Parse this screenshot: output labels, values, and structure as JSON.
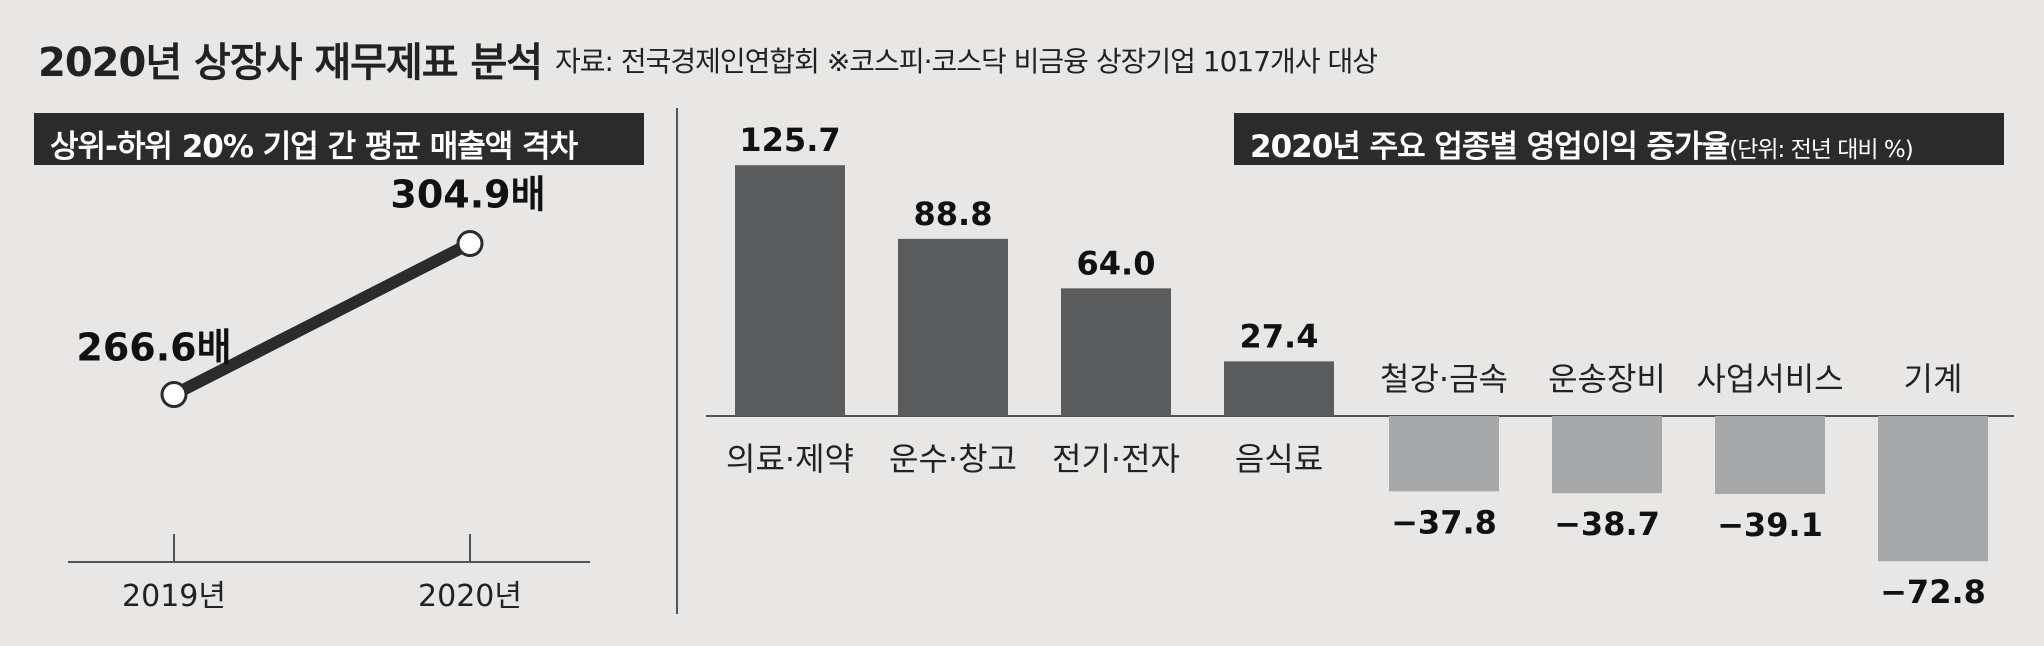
{
  "header": {
    "title": "2020년 상장사 재무제표 분석",
    "source": "자료: 전국경제인연합회 ※코스피·코스닥 비금융 상장기업 1017개사 대상"
  },
  "chart_data": [
    {
      "type": "line",
      "title": "상위-하위 20% 기업 간 평균 매출액 격차",
      "categories": [
        "2019년",
        "2020년"
      ],
      "values": [
        266.6,
        304.9
      ],
      "value_labels": [
        "266.6배",
        "304.9배"
      ],
      "unit": "배"
    },
    {
      "type": "bar",
      "title": "2020년 주요 업종별 영업이익 증가율",
      "unit_note": "(단위: 전년 대비 %)",
      "categories": [
        "의료·제약",
        "운수·창고",
        "전기·전자",
        "음식료",
        "철강·금속",
        "운송장비",
        "사업서비스",
        "기계"
      ],
      "values": [
        125.7,
        88.8,
        64.0,
        27.4,
        -37.8,
        -38.7,
        -39.1,
        -72.8
      ],
      "value_labels": [
        "125.7",
        "88.8",
        "64.0",
        "27.4",
        "−37.8",
        "−38.7",
        "−39.1",
        "−72.8"
      ],
      "colors": {
        "positive": "#5b5c5e",
        "negative": "#a7a8aa"
      }
    }
  ]
}
